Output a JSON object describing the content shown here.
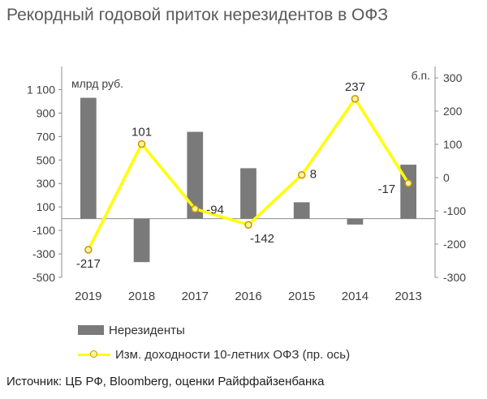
{
  "title": "Рекордный годовой приток нерезидентов в ОФЗ",
  "source": "Источник: ЦБ РФ, Bloomberg, оценки Райффайзенбанка",
  "chart_data": {
    "type": "bar",
    "categories": [
      "2019",
      "2018",
      "2017",
      "2016",
      "2015",
      "2014",
      "2013"
    ],
    "left_axis": {
      "unit_label": "млрд руб.",
      "ylim": [
        -500,
        1200
      ],
      "tick_labels": [
        "1 100",
        "900",
        "700",
        "500",
        "300",
        "100",
        "-100",
        "-300",
        "-500"
      ],
      "tick_values": [
        1100,
        900,
        700,
        500,
        300,
        100,
        -100,
        -300,
        -500
      ]
    },
    "right_axis": {
      "unit_label": "б.п.",
      "ylim": [
        -300,
        300
      ],
      "tick_labels": [
        "300",
        "200",
        "100",
        "0",
        "-100",
        "-200",
        "-300"
      ],
      "tick_values": [
        300,
        200,
        100,
        0,
        -100,
        -200,
        -300
      ]
    },
    "series": [
      {
        "name": "Нерезиденты",
        "type": "bar",
        "axis": "left",
        "color": "#7a7a7a",
        "values": [
          1030,
          -370,
          740,
          430,
          140,
          -50,
          460
        ]
      },
      {
        "name": "Изм. доходности 10-летних ОФЗ (пр. ось)",
        "type": "line",
        "axis": "right",
        "color": "#ffff00",
        "marker_color": "#c79400",
        "values": [
          -217,
          101,
          -94,
          -142,
          8,
          237,
          -17
        ],
        "value_labels": [
          "-217",
          "101",
          "-94",
          "-142",
          "8",
          "237",
          "-17"
        ]
      }
    ],
    "grid": false,
    "legend_position": "bottom-left"
  }
}
